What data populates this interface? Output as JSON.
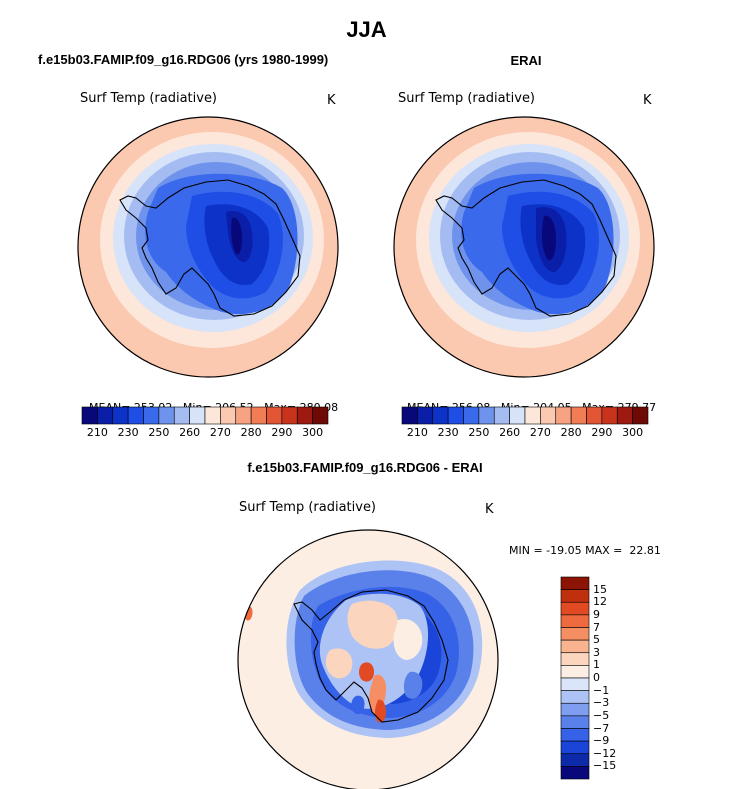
{
  "title": "JJA",
  "panels": [
    {
      "heading": "f.e15b03.FAMIP.f09_g16.RDG06 (yrs 1980-1999)",
      "variable": "Surf Temp (radiative)",
      "unit": "K",
      "stats": {
        "mean_label": "MEAN=",
        "mean": "253.92",
        "min_label": "Min=",
        "min": "206.52",
        "max_label": "Max=",
        "max": "280.08"
      },
      "colorbar_ticks": [
        "210",
        "230",
        "250",
        "260",
        "270",
        "280",
        "290",
        "300"
      ]
    },
    {
      "heading": "ERAI",
      "variable": "Surf Temp (radiative)",
      "unit": "K",
      "stats": {
        "mean_label": "MEAN=",
        "mean": "256.08",
        "min_label": "Min=",
        "min": "204.05",
        "max_label": "Max=",
        "max": "279.77"
      },
      "colorbar_ticks": [
        "210",
        "230",
        "250",
        "260",
        "270",
        "280",
        "290",
        "300"
      ]
    },
    {
      "heading": "f.e15b03.FAMIP.f09_g16.RDG06 - ERAI",
      "variable": "Surf Temp (radiative)",
      "unit": "K",
      "stats_text": "MIN = -19.05 MAX =  22.81",
      "colorbar_ticks": [
        "15",
        "12",
        "9",
        "7",
        "5",
        "3",
        "1",
        "0",
        "−1",
        "−3",
        "−5",
        "−7",
        "−9",
        "−12",
        "−15"
      ]
    }
  ],
  "colors": {
    "abs_scale": [
      "#08087a",
      "#0a1ea8",
      "#0d32c8",
      "#1e4ee6",
      "#3a6aeb",
      "#6f93ec",
      "#a4bcf1",
      "#d7e3f8",
      "#fde7da",
      "#fbc8b0",
      "#f7a383",
      "#f17d57",
      "#e45533",
      "#c7331d",
      "#9e1a10",
      "#6e0a06"
    ],
    "diff_scale": [
      "#08087a",
      "#0d2aa8",
      "#1a45d8",
      "#3562e6",
      "#5a80ea",
      "#7f9eef",
      "#adc3f5",
      "#dae5fa",
      "#fdeee3",
      "#fbd5bd",
      "#f9b48f",
      "#f58e63",
      "#ef6a3e",
      "#e14a23",
      "#c0300f",
      "#8c1404"
    ]
  },
  "chart_data": [
    {
      "type": "heatmap",
      "projection": "south polar stereographic",
      "title": "f.e15b03.FAMIP.f09_g16.RDG06 (yrs 1980-1999)",
      "variable": "Surf Temp (radiative)",
      "units": "K",
      "mean": 253.92,
      "min": 206.52,
      "max": 280.08,
      "contour_levels": [
        205,
        210,
        220,
        230,
        240,
        250,
        255,
        260,
        265,
        270,
        275,
        280,
        285,
        290,
        295,
        300
      ],
      "colorbar_labels": [
        210,
        230,
        250,
        260,
        270,
        280,
        290,
        300
      ]
    },
    {
      "type": "heatmap",
      "projection": "south polar stereographic",
      "title": "ERAI",
      "variable": "Surf Temp (radiative)",
      "units": "K",
      "mean": 256.08,
      "min": 204.05,
      "max": 279.77,
      "contour_levels": [
        205,
        210,
        220,
        230,
        240,
        250,
        255,
        260,
        265,
        270,
        275,
        280,
        285,
        290,
        295,
        300
      ],
      "colorbar_labels": [
        210,
        230,
        250,
        260,
        270,
        280,
        290,
        300
      ]
    },
    {
      "type": "heatmap",
      "projection": "south polar stereographic",
      "title": "f.e15b03.FAMIP.f09_g16.RDG06 - ERAI",
      "variable": "Surf Temp (radiative)",
      "units": "K",
      "min": -19.05,
      "max": 22.81,
      "contour_levels": [
        -15,
        -12,
        -9,
        -7,
        -5,
        -3,
        -1,
        0,
        1,
        3,
        5,
        7,
        9,
        12,
        15
      ],
      "colorbar_labels": [
        15,
        12,
        9,
        7,
        5,
        3,
        1,
        0,
        -1,
        -3,
        -5,
        -7,
        -9,
        -12,
        -15
      ]
    }
  ]
}
